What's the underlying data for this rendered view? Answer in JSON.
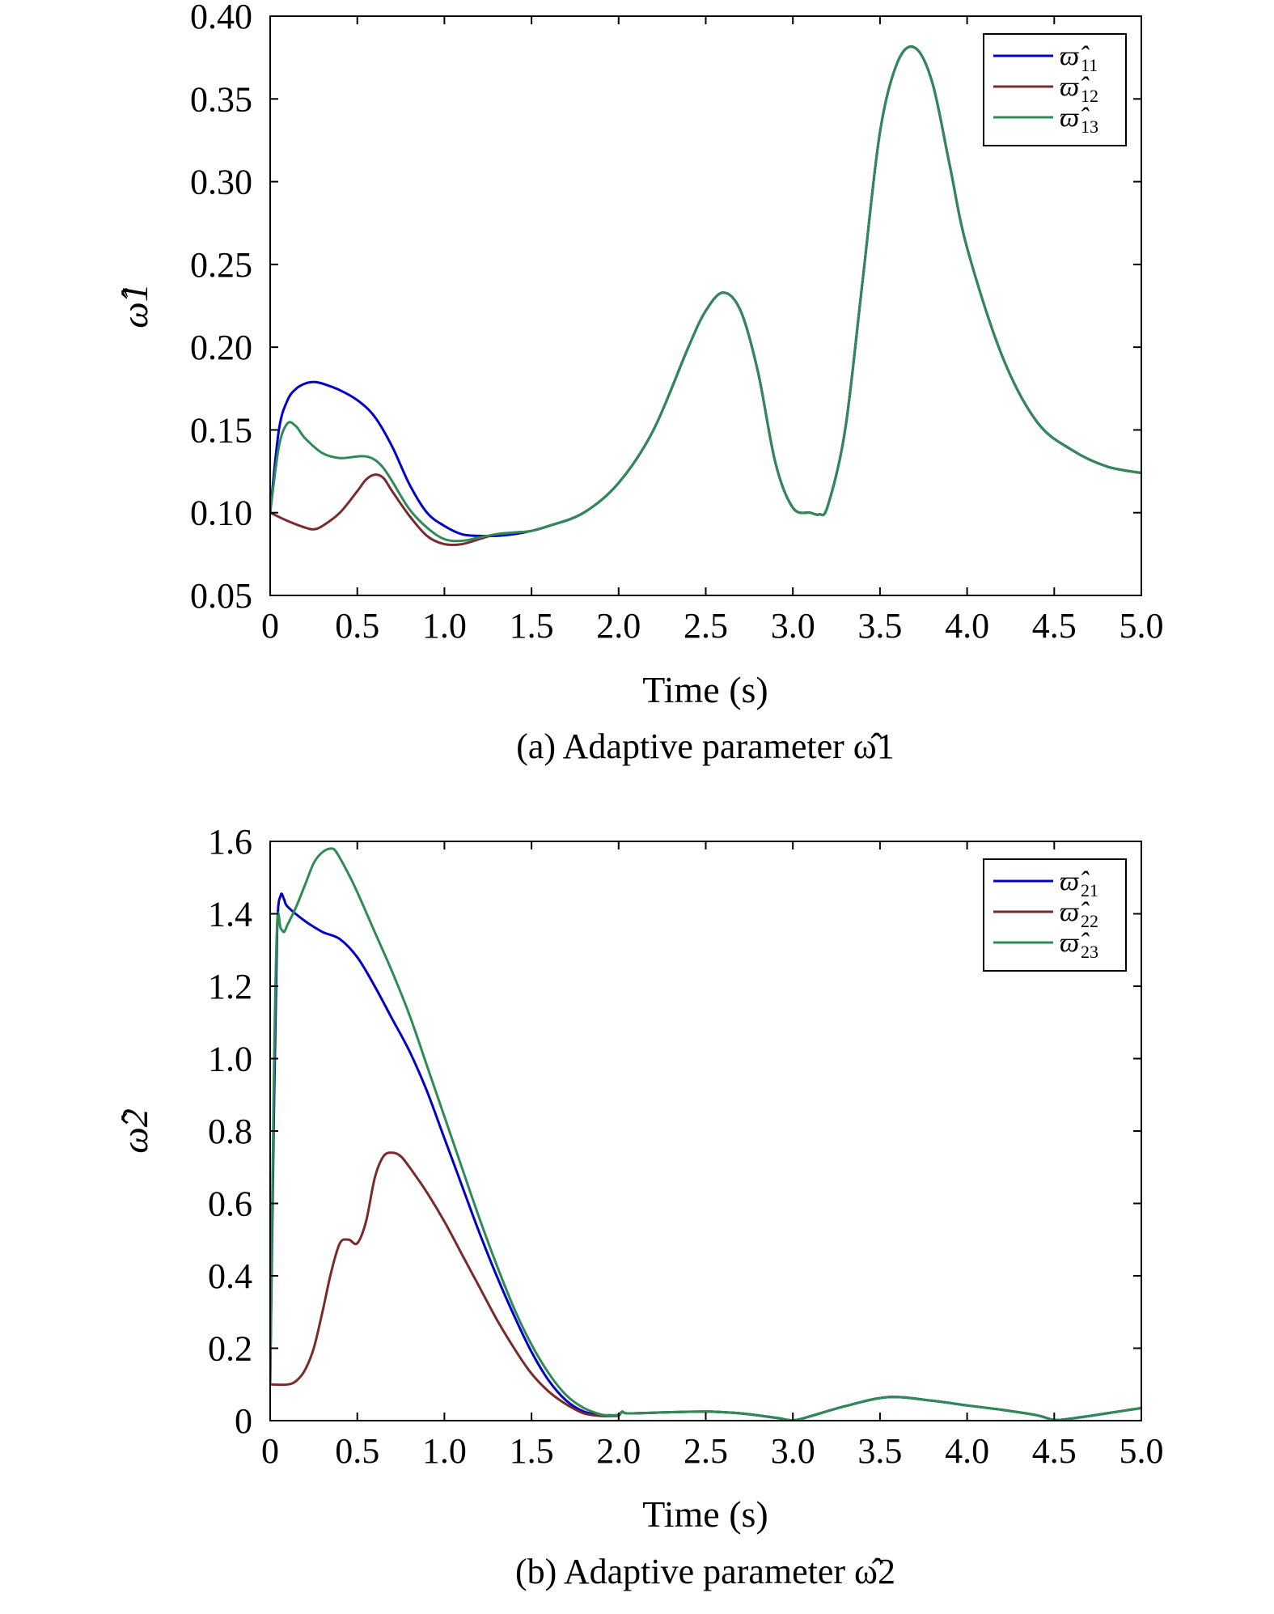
{
  "chart_data": [
    {
      "type": "line",
      "caption": "(a) Adaptive parameter ω̂1",
      "xlabel": "Time (s)",
      "ylabel": "ω̂1",
      "xlim": [
        0,
        5
      ],
      "ylim": [
        0.05,
        0.4
      ],
      "xticks": [
        "0",
        "0.5",
        "1.0",
        "1.5",
        "2.0",
        "2.5",
        "3.0",
        "3.5",
        "4.0",
        "4.5",
        "5.0"
      ],
      "yticks": [
        "0.05",
        "0.10",
        "0.15",
        "0.20",
        "0.25",
        "0.30",
        "0.35",
        "0.40"
      ],
      "legend_position": "top-right",
      "grid": false,
      "series": [
        {
          "name": "ϖ̂11",
          "legend_symbol": "ϖ̂",
          "legend_subscript": "11",
          "color": "#0000cc",
          "x": [
            0,
            0.05,
            0.1,
            0.15,
            0.2,
            0.25,
            0.3,
            0.4,
            0.5,
            0.6,
            0.7,
            0.8,
            0.9,
            1.0,
            1.1,
            1.2,
            1.3,
            1.4,
            1.5,
            1.6,
            1.8,
            2.0,
            2.2,
            2.4,
            2.5,
            2.6,
            2.7,
            2.8,
            2.9,
            3.0,
            3.1,
            3.15,
            3.2,
            3.3,
            3.4,
            3.5,
            3.6,
            3.7,
            3.8,
            3.9,
            4.0,
            4.2,
            4.4,
            4.6,
            4.8,
            5.0
          ],
          "y": [
            0.1,
            0.15,
            0.168,
            0.175,
            0.178,
            0.179,
            0.178,
            0.174,
            0.168,
            0.158,
            0.14,
            0.117,
            0.1,
            0.092,
            0.087,
            0.086,
            0.086,
            0.087,
            0.089,
            0.092,
            0.1,
            0.118,
            0.15,
            0.2,
            0.222,
            0.233,
            0.222,
            0.185,
            0.13,
            0.103,
            0.1,
            0.099,
            0.104,
            0.15,
            0.24,
            0.33,
            0.372,
            0.381,
            0.36,
            0.31,
            0.26,
            0.195,
            0.155,
            0.138,
            0.128,
            0.124
          ]
        },
        {
          "name": "ϖ̂12",
          "legend_symbol": "ϖ̂",
          "legend_subscript": "12",
          "color": "#7a2a2a",
          "x": [
            0,
            0.1,
            0.2,
            0.25,
            0.3,
            0.4,
            0.5,
            0.55,
            0.6,
            0.65,
            0.7,
            0.8,
            0.9,
            1.0,
            1.1,
            1.2,
            1.3,
            1.4,
            1.5,
            1.6,
            1.8,
            2.0,
            2.2,
            2.4,
            2.5,
            2.6,
            2.7,
            2.8,
            2.9,
            3.0,
            3.1,
            3.15,
            3.2,
            3.3,
            3.4,
            3.5,
            3.6,
            3.7,
            3.8,
            3.9,
            4.0,
            4.2,
            4.4,
            4.6,
            4.8,
            5.0
          ],
          "y": [
            0.1,
            0.095,
            0.091,
            0.09,
            0.092,
            0.1,
            0.113,
            0.12,
            0.123,
            0.121,
            0.113,
            0.098,
            0.086,
            0.081,
            0.081,
            0.084,
            0.087,
            0.088,
            0.089,
            0.092,
            0.1,
            0.118,
            0.15,
            0.2,
            0.222,
            0.233,
            0.222,
            0.185,
            0.13,
            0.103,
            0.1,
            0.099,
            0.104,
            0.15,
            0.24,
            0.33,
            0.372,
            0.381,
            0.36,
            0.31,
            0.26,
            0.195,
            0.155,
            0.138,
            0.128,
            0.124
          ]
        },
        {
          "name": "ϖ̂13",
          "legend_symbol": "ϖ̂",
          "legend_subscript": "13",
          "color": "#2e8b57",
          "x": [
            0,
            0.05,
            0.1,
            0.15,
            0.2,
            0.3,
            0.4,
            0.5,
            0.55,
            0.6,
            0.65,
            0.7,
            0.8,
            0.9,
            1.0,
            1.1,
            1.2,
            1.3,
            1.4,
            1.5,
            1.6,
            1.8,
            2.0,
            2.2,
            2.4,
            2.5,
            2.6,
            2.7,
            2.8,
            2.9,
            3.0,
            3.1,
            3.15,
            3.2,
            3.3,
            3.4,
            3.5,
            3.6,
            3.7,
            3.8,
            3.9,
            4.0,
            4.2,
            4.4,
            4.6,
            4.8,
            5.0
          ],
          "y": [
            0.1,
            0.14,
            0.154,
            0.152,
            0.145,
            0.136,
            0.133,
            0.134,
            0.134,
            0.132,
            0.127,
            0.119,
            0.102,
            0.091,
            0.084,
            0.083,
            0.085,
            0.087,
            0.088,
            0.089,
            0.092,
            0.1,
            0.118,
            0.15,
            0.2,
            0.222,
            0.233,
            0.222,
            0.185,
            0.13,
            0.103,
            0.1,
            0.099,
            0.104,
            0.15,
            0.24,
            0.33,
            0.372,
            0.381,
            0.36,
            0.31,
            0.26,
            0.195,
            0.155,
            0.138,
            0.128,
            0.124
          ]
        }
      ]
    },
    {
      "type": "line",
      "caption": "(b) Adaptive parameter ω̂2",
      "xlabel": "Time (s)",
      "ylabel": "ω̂2",
      "xlim": [
        0,
        5
      ],
      "ylim": [
        0,
        1.6
      ],
      "xticks": [
        "0",
        "0.5",
        "1.0",
        "1.5",
        "2.0",
        "2.5",
        "3.0",
        "3.5",
        "4.0",
        "4.5",
        "5.0"
      ],
      "yticks": [
        "0",
        "0.2",
        "0.4",
        "0.6",
        "0.8",
        "1.0",
        "1.2",
        "1.4",
        "1.6"
      ],
      "legend_position": "top-right",
      "grid": false,
      "series": [
        {
          "name": "ϖ̂21",
          "legend_symbol": "ϖ̂",
          "legend_subscript": "21",
          "color": "#0000cc",
          "x": [
            0,
            0.02,
            0.04,
            0.06,
            0.08,
            0.1,
            0.2,
            0.3,
            0.4,
            0.5,
            0.6,
            0.7,
            0.8,
            0.9,
            1.0,
            1.1,
            1.2,
            1.3,
            1.4,
            1.5,
            1.6,
            1.7,
            1.8,
            1.9,
            1.95,
            2.0,
            2.02,
            2.05,
            2.2,
            2.5,
            2.7,
            2.9,
            3.0,
            3.1,
            3.3,
            3.55,
            3.8,
            4.0,
            4.2,
            4.4,
            4.5,
            4.6,
            4.8,
            5.0
          ],
          "y": [
            0.1,
            0.8,
            1.35,
            1.45,
            1.44,
            1.42,
            1.38,
            1.35,
            1.33,
            1.28,
            1.2,
            1.11,
            1.02,
            0.91,
            0.78,
            0.65,
            0.52,
            0.4,
            0.29,
            0.19,
            0.11,
            0.055,
            0.025,
            0.015,
            0.015,
            0.015,
            0.025,
            0.02,
            0.022,
            0.025,
            0.02,
            0.008,
            0.001,
            0.012,
            0.04,
            0.065,
            0.055,
            0.042,
            0.03,
            0.015,
            0.002,
            0.006,
            0.02,
            0.035
          ]
        },
        {
          "name": "ϖ̂22",
          "legend_symbol": "ϖ̂",
          "legend_subscript": "22",
          "color": "#7a2a2a",
          "x": [
            0,
            0.1,
            0.15,
            0.2,
            0.25,
            0.3,
            0.35,
            0.4,
            0.45,
            0.5,
            0.55,
            0.6,
            0.65,
            0.7,
            0.75,
            0.8,
            0.9,
            1.0,
            1.1,
            1.2,
            1.3,
            1.4,
            1.5,
            1.6,
            1.7,
            1.8,
            1.9,
            1.95,
            2.0,
            2.02,
            2.05,
            2.2,
            2.5,
            2.7,
            2.9,
            3.0,
            3.1,
            3.3,
            3.55,
            3.8,
            4.0,
            4.2,
            4.4,
            4.5,
            4.6,
            4.8,
            5.0
          ],
          "y": [
            0.1,
            0.1,
            0.11,
            0.14,
            0.2,
            0.3,
            0.41,
            0.49,
            0.5,
            0.49,
            0.55,
            0.67,
            0.73,
            0.74,
            0.73,
            0.7,
            0.63,
            0.55,
            0.46,
            0.37,
            0.28,
            0.2,
            0.13,
            0.08,
            0.045,
            0.02,
            0.013,
            0.013,
            0.014,
            0.025,
            0.02,
            0.022,
            0.025,
            0.02,
            0.008,
            0.001,
            0.012,
            0.04,
            0.065,
            0.055,
            0.042,
            0.03,
            0.015,
            0.002,
            0.006,
            0.02,
            0.035
          ]
        },
        {
          "name": "ϖ̂23",
          "legend_symbol": "ϖ̂",
          "legend_subscript": "23",
          "color": "#2e8b57",
          "x": [
            0,
            0.02,
            0.04,
            0.06,
            0.08,
            0.1,
            0.15,
            0.2,
            0.25,
            0.3,
            0.35,
            0.38,
            0.45,
            0.5,
            0.6,
            0.7,
            0.8,
            0.9,
            1.0,
            1.1,
            1.2,
            1.3,
            1.4,
            1.5,
            1.6,
            1.7,
            1.8,
            1.9,
            1.95,
            2.0,
            2.02,
            2.05,
            2.2,
            2.5,
            2.7,
            2.9,
            3.0,
            3.1,
            3.3,
            3.55,
            3.8,
            4.0,
            4.2,
            4.4,
            4.5,
            4.6,
            4.8,
            5.0
          ],
          "y": [
            0.1,
            0.9,
            1.37,
            1.36,
            1.35,
            1.37,
            1.42,
            1.48,
            1.54,
            1.57,
            1.58,
            1.57,
            1.51,
            1.46,
            1.35,
            1.24,
            1.12,
            0.98,
            0.84,
            0.7,
            0.56,
            0.43,
            0.31,
            0.21,
            0.13,
            0.07,
            0.035,
            0.017,
            0.015,
            0.016,
            0.025,
            0.02,
            0.022,
            0.025,
            0.02,
            0.008,
            0.001,
            0.012,
            0.04,
            0.065,
            0.055,
            0.042,
            0.03,
            0.015,
            0.002,
            0.006,
            0.02,
            0.035
          ]
        }
      ]
    }
  ]
}
